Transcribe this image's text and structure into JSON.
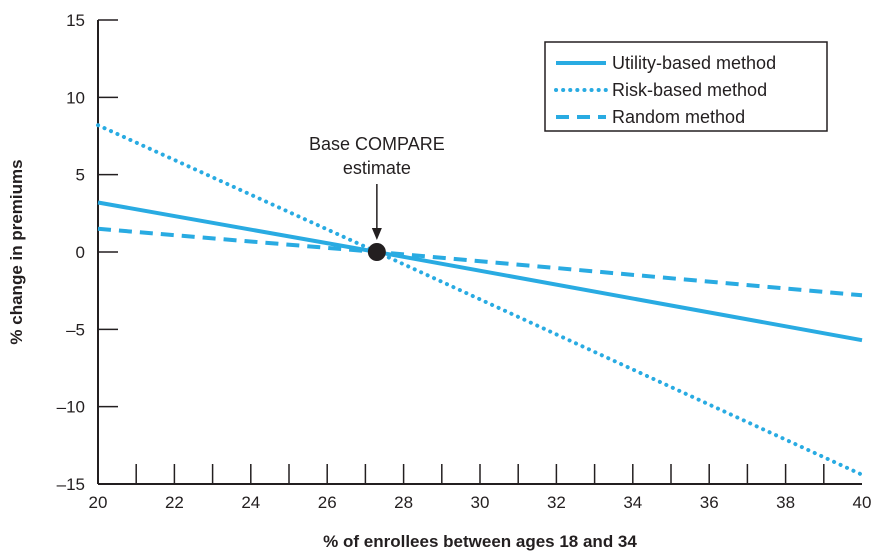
{
  "chart_data": {
    "type": "line",
    "xlabel": "% of enrollees between ages 18 and 34",
    "ylabel": "% change in premiums",
    "xlim": [
      20,
      40
    ],
    "ylim": [
      -15,
      15
    ],
    "x_ticks": [
      20,
      22,
      24,
      26,
      28,
      30,
      32,
      34,
      36,
      38,
      40
    ],
    "x_tick_labels": [
      "20",
      "22",
      "24",
      "26",
      "28",
      "30",
      "32",
      "34",
      "36",
      "38",
      "40"
    ],
    "y_ticks": [
      15,
      10,
      5,
      0,
      -5,
      -10,
      -15
    ],
    "y_tick_labels": [
      "15",
      "10",
      "5",
      "0",
      "–5",
      "–10",
      "–15"
    ],
    "grid": false,
    "legend_position": "top-right",
    "series": [
      {
        "name": "Utility-based method",
        "style": "solid",
        "color": "#29abe2",
        "x": [
          20,
          27.3,
          40
        ],
        "y": [
          3.2,
          0,
          -5.7
        ]
      },
      {
        "name": "Risk-based method",
        "style": "dotted",
        "color": "#29abe2",
        "x": [
          20,
          27.3,
          40
        ],
        "y": [
          8.2,
          0,
          -14.4
        ]
      },
      {
        "name": "Random method",
        "style": "dashed",
        "color": "#29abe2",
        "x": [
          20,
          27.3,
          40
        ],
        "y": [
          1.5,
          0,
          -2.8
        ]
      }
    ],
    "annotation": {
      "lines": [
        "Base COMPARE",
        "estimate"
      ],
      "point": {
        "x": 27.3,
        "y": 0
      }
    }
  }
}
